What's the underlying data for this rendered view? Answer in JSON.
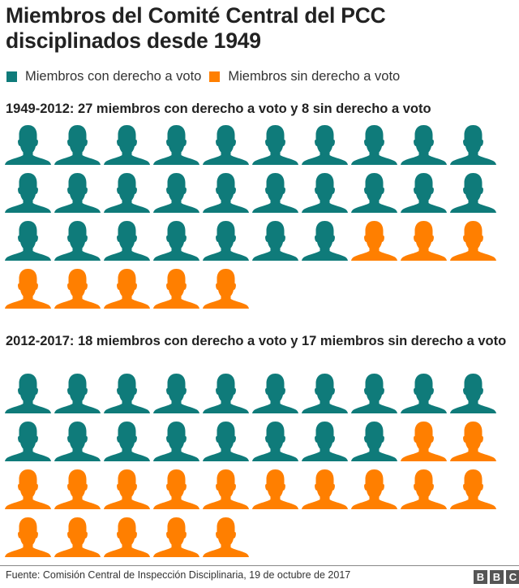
{
  "title": "Miembros del Comité Central del PCC disciplinados desde 1949",
  "legend": [
    {
      "label": "Miembros con derecho a voto",
      "color": "#0f7b7a"
    },
    {
      "label": "Miembros sin derecho a voto",
      "color": "#ff7f00"
    }
  ],
  "sections": [
    {
      "title": "1949-2012: 27 miembros con derecho a voto y 8 sin derecho a voto",
      "voting": 27,
      "non_voting": 8
    },
    {
      "title": "2012-2017: 18 miembros con derecho a voto y 17 miembros sin derecho a voto",
      "voting": 18,
      "non_voting": 17
    }
  ],
  "footer": {
    "source": "Fuente: Comisión Central de Inspección Disciplinaria, 19 de octubre de 2017",
    "logo": [
      "B",
      "B",
      "C"
    ]
  },
  "chart_data": {
    "type": "pictogram",
    "title": "Miembros del Comité Central del PCC disciplinados desde 1949",
    "categories": [
      "1949-2012",
      "2012-2017"
    ],
    "series": [
      {
        "name": "Miembros con derecho a voto",
        "color": "#0f7b7a",
        "values": [
          27,
          18
        ]
      },
      {
        "name": "Miembros sin derecho a voto",
        "color": "#ff7f00",
        "values": [
          8,
          17
        ]
      }
    ],
    "icons_per_row": 10,
    "unit": "1 icon = 1 miembro",
    "legend_position": "top",
    "grid": false
  }
}
